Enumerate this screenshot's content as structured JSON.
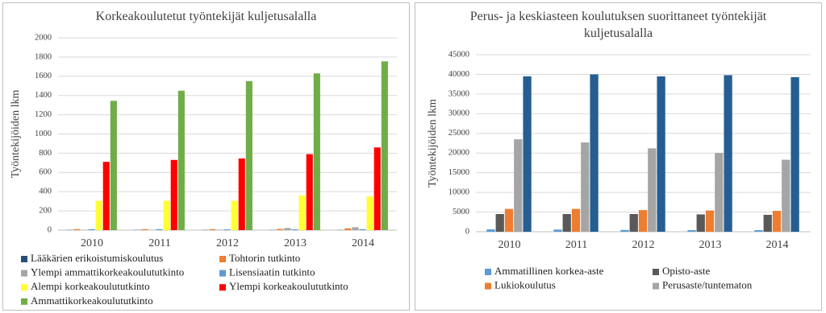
{
  "chart_data": [
    {
      "type": "bar",
      "title": "Korkeakoulutetut työntekijät kuljetusalalla",
      "y_label": "Työntekijöiden lkm",
      "categories": [
        "2010",
        "2011",
        "2012",
        "2013",
        "2014"
      ],
      "ylim": [
        0,
        2000
      ],
      "yticks": [
        0,
        200,
        400,
        600,
        800,
        1000,
        1200,
        1400,
        1600,
        1800,
        2000
      ],
      "grid": true,
      "legend": "bottom",
      "series": [
        {
          "name": "Lääkärien erikoistumiskoulutus",
          "color": "#264f78",
          "values": [
            2,
            2,
            2,
            2,
            2
          ]
        },
        {
          "name": "Tohtorin tutkinto",
          "color": "#ed7d31",
          "values": [
            10,
            10,
            10,
            12,
            18
          ]
        },
        {
          "name": "Ylempi ammattikorkeakoulututkinto",
          "color": "#a5a5a5",
          "values": [
            2,
            3,
            5,
            22,
            30
          ]
        },
        {
          "name": "Lisensiaatin tutkinto",
          "color": "#5b9bd5",
          "values": [
            10,
            10,
            8,
            8,
            10
          ]
        },
        {
          "name": "Alempi korkeakoulututkinto",
          "color": "#ffff33",
          "values": [
            305,
            305,
            305,
            360,
            350
          ]
        },
        {
          "name": "Ylempi korkeakoulututkinto",
          "color": "#ff0000",
          "values": [
            710,
            730,
            745,
            790,
            860
          ]
        },
        {
          "name": "Ammattikorkeakoulututkinto",
          "color": "#70ad47",
          "values": [
            1345,
            1450,
            1550,
            1630,
            1755
          ]
        }
      ]
    },
    {
      "type": "bar",
      "title": "Perus- ja keskiasteen koulutuksen suorittaneet työntekijät kuljetusalalla",
      "y_label": "Työntekijöiden lkm",
      "categories": [
        "2010",
        "2011",
        "2012",
        "2013",
        "2014"
      ],
      "ylim": [
        0,
        45000
      ],
      "yticks": [
        0,
        5000,
        10000,
        15000,
        20000,
        25000,
        30000,
        35000,
        40000,
        45000
      ],
      "grid": true,
      "legend": "bottom",
      "series": [
        {
          "name": "Ammatillinen korkea-aste",
          "color": "#5b9bd5",
          "values": [
            600,
            550,
            450,
            400,
            400
          ]
        },
        {
          "name": "Opisto-aste",
          "color": "#595959",
          "values": [
            4500,
            4500,
            4500,
            4400,
            4300
          ]
        },
        {
          "name": "Lukiokoulutus",
          "color": "#ed7d31",
          "values": [
            5800,
            5800,
            5500,
            5400,
            5300
          ]
        },
        {
          "name": "Perusaste/tuntematon",
          "color": "#a5a5a5",
          "values": [
            23500,
            22700,
            21200,
            20000,
            18300
          ]
        },
        {
          "color": "#255e91",
          "values": [
            39500,
            40000,
            39500,
            39800,
            39300
          ]
        }
      ]
    }
  ]
}
